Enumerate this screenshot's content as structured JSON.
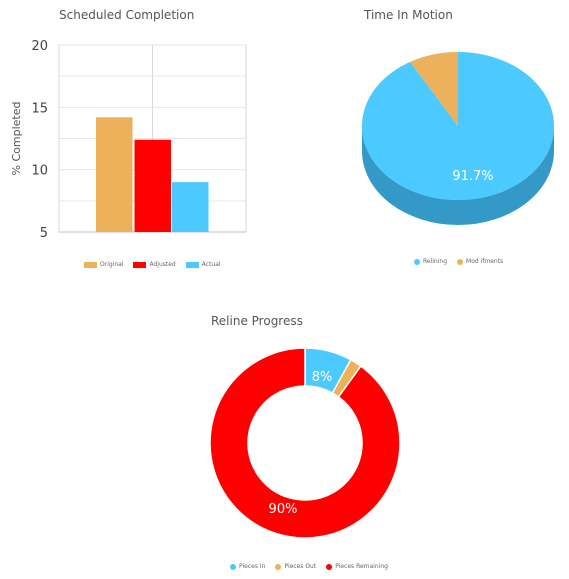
{
  "chart_data": [
    {
      "type": "bar",
      "title": "Scheduled Completion",
      "ylabel": "% Completed",
      "ylim": [
        5,
        20
      ],
      "yticks": [
        5,
        10,
        15,
        20
      ],
      "grid": true,
      "legend_position": "bottom",
      "series": [
        {
          "name": "Original",
          "values": [
            14.2
          ],
          "color": "#EDB15B"
        },
        {
          "name": "Adjusted",
          "values": [
            12.4
          ],
          "color": "#FF0000"
        },
        {
          "name": "Actual",
          "values": [
            9.0
          ],
          "color": "#4CC9FF"
        }
      ]
    },
    {
      "type": "pie",
      "title": "Time In Motion",
      "style": "3d",
      "legend_position": "bottom",
      "slices": [
        {
          "label": "Relining",
          "value": 91.7,
          "display": "91.7%",
          "color": "#4CC9FF",
          "side_color": "#3499C6"
        },
        {
          "label": "Mod ifments",
          "value": 8.3,
          "display": "",
          "color": "#EDB15B",
          "side_color": "#B8833D"
        }
      ]
    },
    {
      "type": "pie",
      "title": "Reline Progress",
      "style": "donut",
      "legend_position": "bottom",
      "slices": [
        {
          "label": "Pieces In",
          "value": 8,
          "display": "8%",
          "color": "#4CC9FF"
        },
        {
          "label": "Pieces Out",
          "value": 2,
          "display": "",
          "color": "#EDB15B"
        },
        {
          "label": "Pieces Remaining",
          "value": 90,
          "display": "90%",
          "color": "#FF0000"
        }
      ]
    }
  ]
}
